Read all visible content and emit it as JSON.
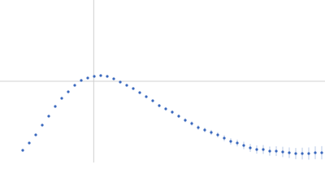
{
  "chart_data": {
    "type": "scatter",
    "x": [
      0.42,
      0.54,
      0.66,
      0.78,
      0.9,
      1.02,
      1.14,
      1.26,
      1.38,
      1.5,
      1.62,
      1.74,
      1.86,
      1.98,
      2.1,
      2.22,
      2.34,
      2.46,
      2.58,
      2.7,
      2.82,
      2.94,
      3.06,
      3.18,
      3.3,
      3.42,
      3.54,
      3.66,
      3.78,
      3.9,
      4.02,
      4.14,
      4.26,
      4.38,
      4.5,
      4.62,
      4.74,
      4.86,
      4.98,
      5.1,
      5.22,
      5.34,
      5.46,
      5.58,
      5.7,
      5.82,
      5.94
    ],
    "series": [
      {
        "color": "#3a68bd",
        "values": [
          0.165,
          0.264,
          0.374,
          0.506,
          0.627,
          0.759,
          0.869,
          0.957,
          1.045,
          1.111,
          1.144,
          1.166,
          1.177,
          1.166,
          1.133,
          1.089,
          1.045,
          1.001,
          0.946,
          0.891,
          0.836,
          0.77,
          0.726,
          0.682,
          0.627,
          0.572,
          0.528,
          0.473,
          0.44,
          0.407,
          0.374,
          0.33,
          0.286,
          0.264,
          0.231,
          0.198,
          0.176,
          0.176,
          0.154,
          0.154,
          0.143,
          0.132,
          0.121,
          0.121,
          0.121,
          0.132,
          0.132
        ],
        "errors": [
          0.01,
          0.01,
          0.01,
          0.01,
          0.01,
          0.01,
          0.01,
          0.01,
          0.01,
          0.01,
          0.01,
          0.01,
          0.01,
          0.01,
          0.012,
          0.012,
          0.014,
          0.014,
          0.016,
          0.016,
          0.018,
          0.02,
          0.02,
          0.022,
          0.024,
          0.026,
          0.028,
          0.03,
          0.032,
          0.034,
          0.036,
          0.04,
          0.042,
          0.046,
          0.05,
          0.054,
          0.056,
          0.06,
          0.062,
          0.066,
          0.07,
          0.072,
          0.076,
          0.08,
          0.082,
          0.086,
          0.09
        ]
      }
    ],
    "xlim": [
      0,
      6
    ],
    "ylim": [
      0,
      2.2
    ],
    "xticks": [
      1.73
    ],
    "yticks": [
      1.1
    ],
    "grid": true
  }
}
